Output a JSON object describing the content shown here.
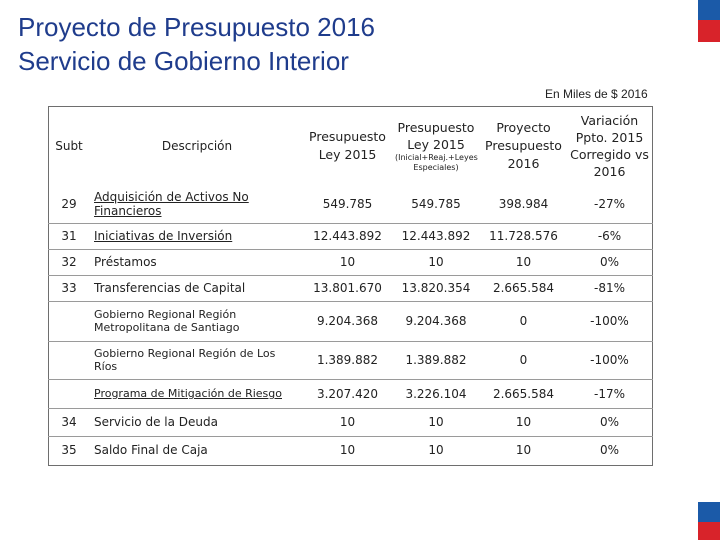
{
  "header": {
    "title_line1": "Proyecto de Presupuesto 2016",
    "title_line2": "Servicio de Gobierno Interior",
    "unit_note": "En Miles de $ 2016"
  },
  "colors": {
    "title": "#1f3c8c",
    "flag_blue": "#1b5aa8",
    "flag_red": "#d8232a"
  },
  "table": {
    "headers": {
      "subt": "Subt",
      "descripcion": "Descripción",
      "ley2015_a": "Presupuesto",
      "ley2015_b": "Ley 2015",
      "ley2015mod_a": "Presupuesto",
      "ley2015mod_b": "Ley 2015",
      "ley2015mod_note": "(Inicial+Reaj.+Leyes Especiales)",
      "proyecto_a": "Proyecto",
      "proyecto_b": "Presupuesto",
      "proyecto_c": "2016",
      "variacion_a": "Variación",
      "variacion_b": "Ppto. 2015",
      "variacion_c": "Corregido vs",
      "variacion_d": "2016"
    },
    "rows": [
      {
        "subt": "29",
        "desc": "Adquisición de Activos No Financieros",
        "ley2015": "549.785",
        "ley2015mod": "549.785",
        "proyecto": "398.984",
        "variacion": "-27%"
      },
      {
        "subt": "31",
        "desc": "Iniciativas de Inversión",
        "ley2015": "12.443.892",
        "ley2015mod": "12.443.892",
        "proyecto": "11.728.576",
        "variacion": "-6%"
      },
      {
        "subt": "32",
        "desc": "Préstamos",
        "ley2015": "10",
        "ley2015mod": "10",
        "proyecto": "10",
        "variacion": "0%"
      },
      {
        "subt": "33",
        "desc": "Transferencias de Capital",
        "ley2015": "13.801.670",
        "ley2015mod": "13.820.354",
        "proyecto": "2.665.584",
        "variacion": "-81%"
      },
      {
        "subt": "",
        "desc": "Gobierno Regional Región Metropolitana de Santiago",
        "ley2015": "9.204.368",
        "ley2015mod": "9.204.368",
        "proyecto": "0",
        "variacion": "-100%"
      },
      {
        "subt": "",
        "desc": "Gobierno Regional Región de Los Ríos",
        "ley2015": "1.389.882",
        "ley2015mod": "1.389.882",
        "proyecto": "0",
        "variacion": "-100%"
      },
      {
        "subt": "",
        "desc": "Programa de Mitigación de Riesgo",
        "ley2015": "3.207.420",
        "ley2015mod": "3.226.104",
        "proyecto": "2.665.584",
        "variacion": "-17%"
      },
      {
        "subt": "34",
        "desc": "Servicio de la Deuda",
        "ley2015": "10",
        "ley2015mod": "10",
        "proyecto": "10",
        "variacion": "0%"
      },
      {
        "subt": "35",
        "desc": "Saldo Final de Caja",
        "ley2015": "10",
        "ley2015mod": "10",
        "proyecto": "10",
        "variacion": "0%"
      }
    ]
  }
}
